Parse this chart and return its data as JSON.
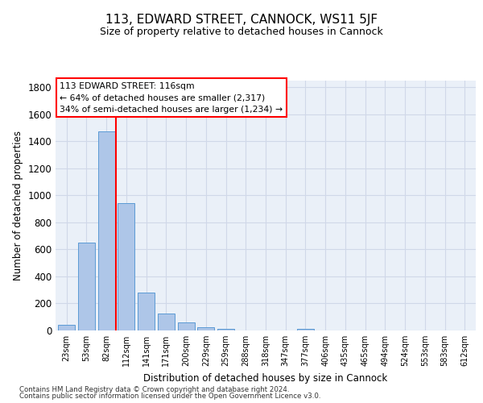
{
  "title": "113, EDWARD STREET, CANNOCK, WS11 5JF",
  "subtitle": "Size of property relative to detached houses in Cannock",
  "xlabel": "Distribution of detached houses by size in Cannock",
  "ylabel": "Number of detached properties",
  "categories": [
    "23sqm",
    "53sqm",
    "82sqm",
    "112sqm",
    "141sqm",
    "171sqm",
    "200sqm",
    "229sqm",
    "259sqm",
    "288sqm",
    "318sqm",
    "347sqm",
    "377sqm",
    "406sqm",
    "435sqm",
    "465sqm",
    "494sqm",
    "524sqm",
    "553sqm",
    "583sqm",
    "612sqm"
  ],
  "values": [
    40,
    648,
    1475,
    940,
    280,
    125,
    60,
    22,
    12,
    0,
    0,
    0,
    12,
    0,
    0,
    0,
    0,
    0,
    0,
    0,
    0
  ],
  "bar_color": "#aec6e8",
  "bar_edge_color": "#5b9bd5",
  "grid_color": "#d0d8e8",
  "background_color": "#eaf0f8",
  "annotation_title": "113 EDWARD STREET: 116sqm",
  "annotation_line1": "← 64% of detached houses are smaller (2,317)",
  "annotation_line2": "34% of semi-detached houses are larger (1,234) →",
  "footnote1": "Contains HM Land Registry data © Crown copyright and database right 2024.",
  "footnote2": "Contains public sector information licensed under the Open Government Licence v3.0.",
  "ylim": [
    0,
    1850
  ],
  "yticks": [
    0,
    200,
    400,
    600,
    800,
    1000,
    1200,
    1400,
    1600,
    1800
  ],
  "title_fontsize": 11,
  "subtitle_fontsize": 9
}
